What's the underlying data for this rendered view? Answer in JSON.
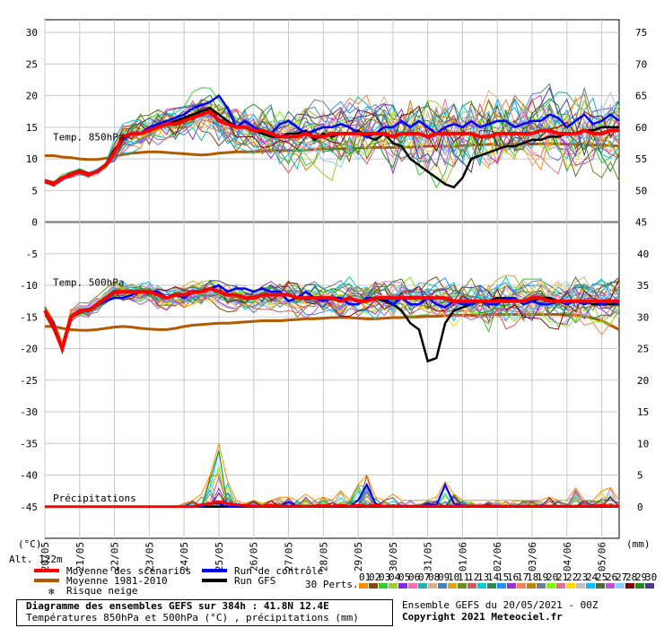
{
  "chart_data": {
    "type": "line",
    "title": "Diagramme des ensembles GEFS sur 384h : 41.8N 12.4E",
    "subtitle": "Températures 850hPa et 500hPa (°C) , précipitations (mm)",
    "panel_labels": {
      "t850": "Temp. 850hPa",
      "t500": "Temp. 500hPa",
      "precip": "Précipitations"
    },
    "left_axis": {
      "unit": "(°C)",
      "ticks": [
        30,
        25,
        20,
        15,
        10,
        5,
        0,
        -5,
        -10,
        -15,
        -20,
        -25,
        -30,
        -35,
        -40,
        -45
      ],
      "range": [
        -50,
        32
      ]
    },
    "right_axis_upper": {
      "ticks": [
        75,
        70,
        65,
        60,
        55,
        50,
        45
      ],
      "offset_to_left": 45
    },
    "right_axis_lower": {
      "unit": "(mm)",
      "ticks": [
        40,
        35,
        30,
        25,
        20,
        15,
        10,
        5,
        0
      ],
      "zero_at_left": -45,
      "mm_per_degree": 1
    },
    "x_ticks": [
      "20/05",
      "21/05",
      "22/05",
      "23/05",
      "24/05",
      "25/05",
      "26/05",
      "27/05",
      "28/05",
      "29/05",
      "30/05",
      "31/05",
      "01/06",
      "02/06",
      "03/06",
      "04/06",
      "05/06"
    ],
    "alt_label": "Alt. 122m",
    "step_hours": 6,
    "t850": {
      "mean": [
        6.5,
        6,
        7,
        7.5,
        8,
        7.5,
        8,
        9,
        11,
        13.5,
        14,
        14,
        14.5,
        15,
        15.5,
        15.5,
        16,
        16.5,
        17,
        17.5,
        16,
        15.5,
        15,
        15,
        14.5,
        14.5,
        14,
        13.5,
        13.5,
        13.5,
        14,
        13.5,
        13.5,
        14,
        14,
        14,
        14,
        14,
        14,
        14,
        13.5,
        14,
        14,
        14,
        13.5,
        14,
        14,
        14,
        14,
        14,
        13.5,
        13.5,
        14,
        14,
        14,
        14,
        14,
        14.5,
        14.5,
        14,
        14,
        14,
        14.5,
        14,
        14,
        14.5,
        14.5
      ],
      "control": [
        6.5,
        6,
        7,
        7.5,
        8,
        7.5,
        8,
        9,
        11,
        13,
        14,
        14,
        15,
        15.5,
        16,
        16.5,
        17,
        18,
        18.5,
        19,
        20,
        18,
        15,
        16,
        15,
        14.5,
        14,
        15.5,
        16,
        15,
        14,
        14.5,
        15,
        15,
        15.5,
        15,
        14,
        13.5,
        14,
        15,
        15,
        16,
        15,
        16,
        15,
        14,
        15,
        15.5,
        15,
        16,
        15,
        15.5,
        16,
        16,
        15,
        15.5,
        16,
        16,
        17,
        16.5,
        15,
        16,
        17,
        15.5,
        16,
        17,
        16
      ],
      "gfs": [
        6.5,
        6,
        7,
        7.5,
        8,
        7.5,
        8,
        9,
        11.5,
        13,
        14,
        14,
        14.5,
        15,
        15.5,
        16,
        16.5,
        17,
        17.5,
        18,
        17,
        16,
        15,
        15,
        14.5,
        14,
        13.5,
        13.5,
        14,
        14,
        14.5,
        13,
        14,
        13.5,
        14,
        14,
        14.5,
        13.5,
        13,
        14,
        12.5,
        12,
        10,
        9,
        8,
        7,
        6,
        5.5,
        7,
        10,
        10.5,
        11,
        11.5,
        12,
        12,
        12.5,
        13,
        13,
        13.5,
        13.5,
        14,
        14,
        14.5,
        14.5,
        15,
        15,
        15
      ],
      "climo": [
        10.5,
        10.5,
        10.3,
        10.2,
        10,
        9.9,
        9.9,
        10.1,
        10.4,
        10.7,
        10.9,
        11,
        11.1,
        11.1,
        11,
        10.9,
        10.8,
        10.7,
        10.6,
        10.7,
        10.9,
        11,
        11.1,
        11.1,
        11.1,
        11.2,
        11.3,
        11.3,
        11.3,
        11.3,
        11.4,
        11.5,
        11.6,
        11.6,
        11.6,
        11.6,
        11.7,
        11.8,
        11.8,
        11.8,
        11.8,
        11.8,
        11.9,
        11.9,
        12,
        12,
        12,
        12,
        12.1,
        12.2,
        12.2,
        12.3,
        12.3,
        12.3,
        12.3,
        12.3,
        12.3,
        12.4,
        12.4,
        12.4,
        12.3,
        12.3,
        12.3,
        12.2,
        12.2,
        12.1,
        12
      ]
    },
    "t500": {
      "mean": [
        -14,
        -16.5,
        -20,
        -15,
        -14,
        -14,
        -13,
        -12,
        -11,
        -11,
        -11,
        -11,
        -11,
        -11.5,
        -12,
        -11.5,
        -11.5,
        -11,
        -11,
        -10.5,
        -11,
        -11.5,
        -11.5,
        -12,
        -12,
        -11.5,
        -11.5,
        -11.5,
        -11.5,
        -12,
        -12,
        -12,
        -12,
        -12,
        -12.5,
        -12,
        -12.5,
        -12.5,
        -12,
        -12,
        -12,
        -12,
        -12,
        -12,
        -12,
        -12,
        -12,
        -12.5,
        -12.5,
        -12.5,
        -12.5,
        -12.5,
        -12.5,
        -12.5,
        -12.5,
        -12.5,
        -12,
        -12,
        -12.5,
        -12.5,
        -12.5,
        -12.5,
        -12.5,
        -12.5,
        -12.5,
        -12.5,
        -12.5
      ],
      "control": [
        -14,
        -16,
        -20,
        -15,
        -14,
        -14,
        -13,
        -12.5,
        -12,
        -12,
        -11.5,
        -11,
        -11,
        -11,
        -12,
        -11.5,
        -12,
        -11,
        -11,
        -10.5,
        -10,
        -11,
        -10.5,
        -10.5,
        -11,
        -10.5,
        -11,
        -11,
        -12.5,
        -12,
        -11,
        -12,
        -12.5,
        -12,
        -12,
        -13,
        -13,
        -12,
        -12,
        -12,
        -13,
        -12,
        -13,
        -13,
        -12,
        -13,
        -13.5,
        -12.5,
        -13,
        -13,
        -12.5,
        -13,
        -13,
        -12,
        -12,
        -13,
        -12.5,
        -13,
        -13,
        -12.5,
        -13,
        -12.5,
        -13,
        -12.5,
        -13,
        -12.5,
        -13
      ],
      "gfs": [
        -14,
        -16.5,
        -20,
        -15,
        -14,
        -14,
        -13,
        -12,
        -11,
        -11,
        -11,
        -11,
        -11,
        -11.5,
        -12,
        -11.5,
        -11.5,
        -11,
        -11,
        -10.5,
        -11,
        -11.5,
        -11.5,
        -12,
        -12,
        -11.5,
        -11.5,
        -11.5,
        -11.5,
        -12,
        -12,
        -12,
        -12,
        -12,
        -12.5,
        -12,
        -12.5,
        -12.5,
        -12,
        -12.5,
        -13,
        -14,
        -16,
        -17,
        -22,
        -21.5,
        -16,
        -14,
        -13.5,
        -13,
        -12.5,
        -12.5,
        -12,
        -12,
        -12.5,
        -12.5,
        -12.5,
        -12,
        -12,
        -12.5,
        -12.5,
        -12.5,
        -12.5,
        -13,
        -13,
        -13,
        -13
      ],
      "climo": [
        -16.5,
        -16.5,
        -16.8,
        -17,
        -17.1,
        -17.1,
        -17,
        -16.8,
        -16.6,
        -16.5,
        -16.6,
        -16.8,
        -16.9,
        -17,
        -17,
        -16.8,
        -16.5,
        -16.3,
        -16.2,
        -16.1,
        -16,
        -16,
        -15.9,
        -15.8,
        -15.7,
        -15.6,
        -15.6,
        -15.6,
        -15.5,
        -15.4,
        -15.3,
        -15.3,
        -15.2,
        -15.1,
        -15.1,
        -15.1,
        -15.2,
        -15.3,
        -15.3,
        -15.2,
        -15.1,
        -15.1,
        -15,
        -15,
        -14.9,
        -14.9,
        -14.8,
        -14.7,
        -14.7,
        -14.7,
        -14.7,
        -14.6,
        -14.6,
        -14.6,
        -14.6,
        -14.6,
        -14.6,
        -14.6,
        -14.6,
        -14.6,
        -14.7,
        -14.7,
        -14.9,
        -15.2,
        -15.6,
        -16.3,
        -17
      ]
    },
    "precip": {
      "mean": [
        0,
        0,
        0,
        0,
        0,
        0,
        0,
        0,
        0,
        0,
        0,
        0,
        0,
        0,
        0,
        0,
        0,
        0,
        0.3,
        0.5,
        0.8,
        0.5,
        0.3,
        0.2,
        0.1,
        0.1,
        0.2,
        0.1,
        0.1,
        0.1,
        0.1,
        0.1,
        0.2,
        0.1,
        0.2,
        0.1,
        0.2,
        0.1,
        0.2,
        0.1,
        0.1,
        0.1,
        0.1,
        0.1,
        0.1,
        0.1,
        0.1,
        0.1,
        0.1,
        0.1,
        0.1,
        0.1,
        0.1,
        0.1,
        0.1,
        0.1,
        0.1,
        0.1,
        0.1,
        0.1,
        0.1,
        0.1,
        0.1,
        0.1,
        0.2,
        0.1,
        0.1
      ],
      "control": [
        0,
        0,
        0,
        0,
        0,
        0,
        0,
        0,
        0,
        0,
        0,
        0,
        0,
        0,
        0,
        0,
        0,
        0,
        0,
        0.5,
        0.5,
        0,
        0,
        0,
        0,
        0,
        0,
        0,
        0.8,
        0,
        0,
        0,
        0,
        0,
        0.2,
        0,
        1,
        3.5,
        0.5,
        0,
        0,
        0.2,
        0,
        0,
        0.5,
        0.2,
        3.5,
        0.5,
        0.2,
        0,
        0,
        0,
        0,
        0,
        0,
        0,
        0,
        0.2,
        0,
        0,
        0,
        0,
        0,
        0,
        0,
        0,
        0
      ],
      "gfs": [
        0,
        0,
        0,
        0,
        0,
        0,
        0,
        0,
        0,
        0,
        0,
        0,
        0,
        0,
        0,
        0,
        0,
        0,
        0,
        0,
        0,
        0,
        0,
        0,
        0,
        0,
        0,
        0,
        0,
        0,
        0,
        0,
        0,
        0,
        0,
        0,
        0,
        0,
        0,
        0,
        0,
        0,
        0,
        0,
        0,
        0,
        0,
        0,
        0,
        0,
        0,
        0,
        0,
        0,
        0,
        0,
        0,
        0,
        0,
        0,
        0,
        0,
        0,
        0,
        0,
        0,
        0
      ],
      "members_max": [
        0,
        0,
        0,
        0,
        0,
        0,
        0,
        0,
        0,
        0,
        0,
        0,
        0,
        0,
        0,
        0,
        0.5,
        1,
        2,
        5,
        10,
        4,
        1,
        0.5,
        1,
        0.5,
        1,
        1.5,
        1.5,
        1,
        2,
        1,
        1.5,
        1,
        2.5,
        1,
        3.5,
        5,
        1.5,
        1,
        2,
        1,
        1,
        1,
        1,
        1.5,
        4,
        2,
        1,
        1,
        1,
        1,
        1,
        1,
        1,
        1,
        1,
        1,
        1.5,
        1,
        1,
        3,
        1,
        1,
        2.5,
        3,
        1
      ]
    },
    "legend": [
      {
        "label": "Moyenne des scénarios",
        "color": "#ff0000"
      },
      {
        "label": "Moyenne 1981-2010",
        "color": "#b35a00"
      },
      {
        "label": "Risque neige",
        "color": "#66aaee"
      },
      {
        "label": "Run de contrôle",
        "color": "#0000ff"
      },
      {
        "label": "Run GFS",
        "color": "#000000"
      }
    ],
    "perts_label": "30 Perts.",
    "perts_codes": [
      "01",
      "02",
      "03",
      "04",
      "05",
      "06",
      "07",
      "08",
      "09",
      "10",
      "11",
      "12",
      "13",
      "14",
      "15",
      "16",
      "17",
      "18",
      "19",
      "20",
      "21",
      "22",
      "23",
      "24",
      "25",
      "26",
      "27",
      "28",
      "29",
      "30"
    ],
    "pert_colors": [
      "#ff8c00",
      "#8b4513",
      "#32cd32",
      "#9acd32",
      "#8a2be2",
      "#ff69b4",
      "#20b2aa",
      "#d2b48c",
      "#4682b4",
      "#daa520",
      "#6b8e23",
      "#cd5c5c",
      "#00ced1",
      "#2e8b57",
      "#1e90ff",
      "#9932cc",
      "#ff7f50",
      "#b8860b",
      "#708090",
      "#7cfc00",
      "#db7093",
      "#ffd700",
      "#c0c0c0",
      "#00bfff",
      "#556b2f",
      "#ba55d3",
      "#87cefa",
      "#800000",
      "#228b22",
      "#483d8b"
    ],
    "grid": true
  },
  "footer": {
    "title": "Diagramme des ensembles GEFS sur 384h : 41.8N 12.4E",
    "subtitle": "Températures 850hPa et 500hPa (°C) , précipitations (mm)",
    "run": "Ensemble GEFS du 20/05/2021 - 00Z",
    "copyright": "Copyright 2021 Meteociel.fr"
  }
}
